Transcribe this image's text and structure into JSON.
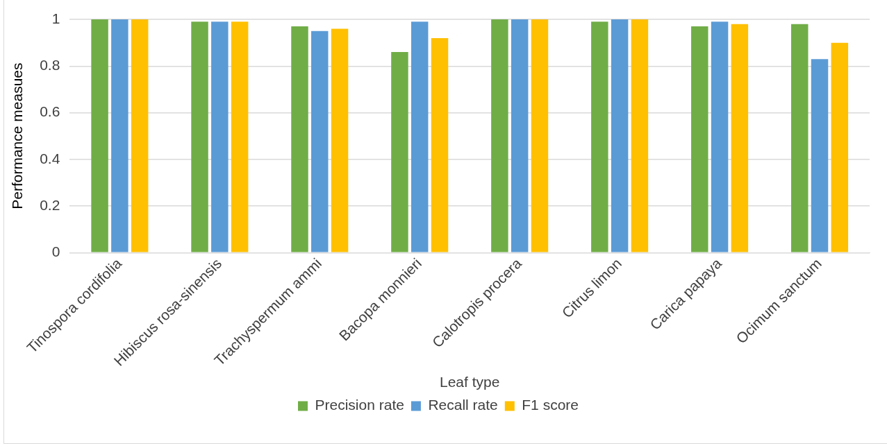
{
  "chart_data": {
    "type": "bar",
    "xlabel": "Leaf type",
    "ylabel": "Performance measues",
    "categories": [
      "Tinospora cordifolia",
      "Hibiscus rosa-sinensis",
      "Trachyspermum ammi",
      "Bacopa monnieri",
      "Calotropis procera",
      "Citrus limon",
      "Carica papaya",
      "Ocimum sanctum"
    ],
    "series": [
      {
        "name": "Precision rate",
        "color": "#70ad47",
        "values": [
          1,
          0.99,
          0.97,
          0.86,
          1,
          0.99,
          0.97,
          0.98
        ]
      },
      {
        "name": "Recall rate",
        "color": "#5b9bd5",
        "values": [
          1,
          0.99,
          0.95,
          0.99,
          1,
          1,
          0.99,
          0.83
        ]
      },
      {
        "name": "F1 score",
        "color": "#ffc000",
        "values": [
          1,
          0.99,
          0.96,
          0.92,
          1,
          1,
          0.98,
          0.9
        ]
      }
    ],
    "ylim": [
      0,
      1
    ],
    "yticks": [
      0,
      0.2,
      0.4,
      0.6,
      0.8,
      1
    ],
    "grid": "y",
    "legend": "bottom"
  }
}
